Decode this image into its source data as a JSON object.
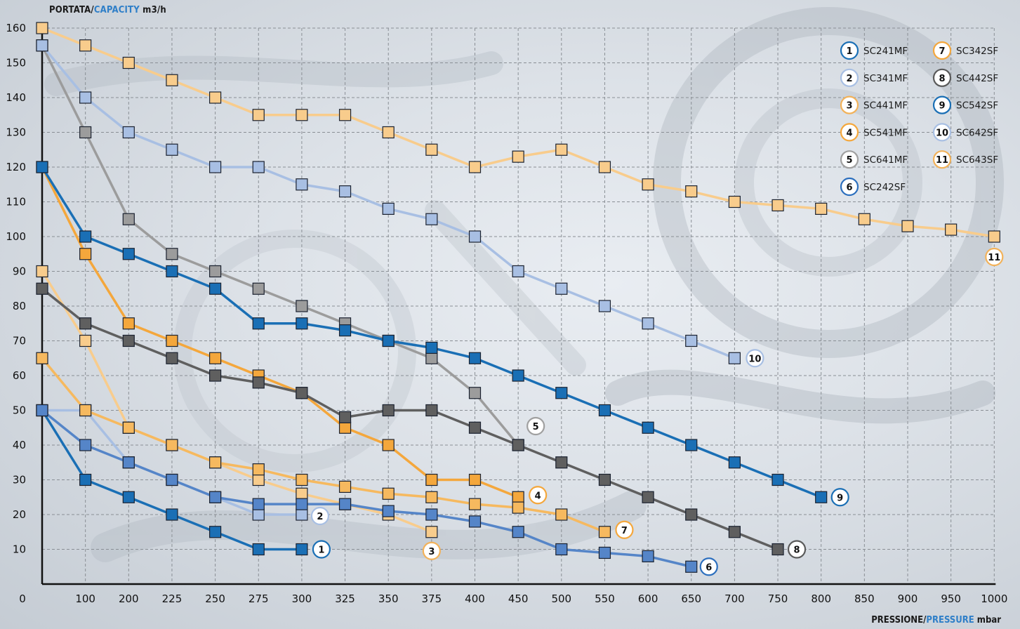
{
  "y_title": {
    "label": "PORTATA",
    "sep": "/",
    "label_en": "CAPACITY",
    "unit": " m3/h"
  },
  "x_title": {
    "label": "PRESSIONE",
    "sep": "/",
    "label_en": "PRESSURE",
    "unit": " mbar"
  },
  "colors": {
    "accent": "#2f7fc8"
  },
  "chart_data": {
    "type": "line",
    "xlabel": "PRESSIONE/PRESSURE mbar",
    "ylabel": "PORTATA/CAPACITY m3/h",
    "x_ticks": [
      "0",
      "100",
      "200",
      "225",
      "250",
      "275",
      "300",
      "325",
      "350",
      "375",
      "400",
      "450",
      "500",
      "550",
      "600",
      "650",
      "700",
      "750",
      "800",
      "850",
      "900",
      "950",
      "1000"
    ],
    "y_ticks": [
      10,
      20,
      30,
      40,
      50,
      60,
      70,
      80,
      90,
      100,
      110,
      120,
      130,
      140,
      150,
      160
    ],
    "ylim": [
      0,
      160
    ],
    "grid": true,
    "legend_position": "top-right",
    "series": [
      {
        "id": 1,
        "name": "SC241MF",
        "color": "#1a6fb5",
        "ring": "#1a6fb5",
        "x": [
          "0",
          "100",
          "200",
          "225",
          "250",
          "275",
          "300"
        ],
        "values": [
          50,
          30,
          25,
          20,
          15,
          10,
          10
        ]
      },
      {
        "id": 2,
        "name": "SC341MF",
        "color": "#a8bfe3",
        "ring": "#a8bfe3",
        "x": [
          "0",
          "100",
          "200",
          "225",
          "250",
          "275",
          "300"
        ],
        "values": [
          50,
          50,
          35,
          30,
          25,
          20,
          20
        ]
      },
      {
        "id": 3,
        "name": "SC441MF",
        "color": "#f8cc8c",
        "ring": "#f2b25a",
        "x": [
          "0",
          "100",
          "200",
          "225",
          "250",
          "275",
          "300",
          "325",
          "350",
          "375"
        ],
        "values": [
          90,
          70,
          45,
          40,
          35,
          30,
          26,
          23,
          20,
          15
        ]
      },
      {
        "id": 4,
        "name": "SC541MF",
        "color": "#f4a73c",
        "ring": "#f4a73c",
        "x": [
          "0",
          "100",
          "200",
          "225",
          "250",
          "275",
          "300",
          "325",
          "350",
          "375",
          "400",
          "450"
        ],
        "values": [
          120,
          95,
          75,
          70,
          65,
          60,
          55,
          45,
          40,
          30,
          30,
          25
        ]
      },
      {
        "id": 5,
        "name": "SC641MF",
        "color": "#9c9c9c",
        "ring": "#a0a0a0",
        "x": [
          "0",
          "100",
          "200",
          "225",
          "250",
          "275",
          "300",
          "325",
          "350",
          "375",
          "400",
          "450"
        ],
        "values": [
          155,
          130,
          105,
          95,
          90,
          85,
          80,
          75,
          70,
          65,
          55,
          40
        ]
      },
      {
        "id": 6,
        "name": "SC242SF",
        "color": "#5585c8",
        "ring": "#2c6fbe",
        "x": [
          "0",
          "100",
          "200",
          "225",
          "250",
          "275",
          "300",
          "325",
          "350",
          "375",
          "400",
          "450",
          "500",
          "550",
          "600",
          "650"
        ],
        "values": [
          50,
          40,
          35,
          30,
          25,
          23,
          23,
          23,
          21,
          20,
          18,
          15,
          10,
          9,
          8,
          5
        ]
      },
      {
        "id": 7,
        "name": "SC342SF",
        "color": "#f6b95f",
        "ring": "#f4a73c",
        "x": [
          "0",
          "100",
          "200",
          "225",
          "250",
          "275",
          "300",
          "325",
          "350",
          "375",
          "400",
          "450",
          "500",
          "550"
        ],
        "values": [
          65,
          50,
          45,
          40,
          35,
          33,
          30,
          28,
          26,
          25,
          23,
          22,
          20,
          15
        ]
      },
      {
        "id": 8,
        "name": "SC442SF",
        "color": "#5f5f5f",
        "ring": "#5a5a5a",
        "x": [
          "0",
          "100",
          "200",
          "225",
          "250",
          "275",
          "300",
          "325",
          "350",
          "375",
          "400",
          "450",
          "500",
          "550",
          "600",
          "650",
          "700",
          "750"
        ],
        "values": [
          85,
          75,
          70,
          65,
          60,
          58,
          55,
          48,
          50,
          50,
          45,
          40,
          35,
          30,
          25,
          20,
          15,
          10
        ]
      },
      {
        "id": 9,
        "name": "SC542SF",
        "color": "#1a6fb5",
        "ring": "#1a6fb5",
        "x": [
          "0",
          "100",
          "200",
          "225",
          "250",
          "275",
          "300",
          "325",
          "350",
          "375",
          "400",
          "450",
          "500",
          "550",
          "600",
          "650",
          "700",
          "750",
          "800"
        ],
        "values": [
          120,
          100,
          95,
          90,
          85,
          75,
          75,
          73,
          70,
          68,
          65,
          60,
          55,
          50,
          45,
          40,
          35,
          30,
          25
        ]
      },
      {
        "id": 10,
        "name": "SC642SF",
        "color": "#a8bfe3",
        "ring": "#a8bfe3",
        "x": [
          "0",
          "100",
          "200",
          "225",
          "250",
          "275",
          "300",
          "325",
          "350",
          "375",
          "400",
          "450",
          "500",
          "550",
          "600",
          "650",
          "700"
        ],
        "values": [
          155,
          140,
          130,
          125,
          120,
          120,
          115,
          113,
          108,
          105,
          100,
          90,
          85,
          80,
          75,
          70,
          65
        ]
      },
      {
        "id": 11,
        "name": "SC643SF",
        "color": "#f8cc8c",
        "ring": "#f2b25a",
        "x": [
          "0",
          "100",
          "200",
          "225",
          "250",
          "275",
          "300",
          "325",
          "350",
          "375",
          "400",
          "450",
          "500",
          "550",
          "600",
          "650",
          "700",
          "750",
          "800",
          "850",
          "900",
          "950",
          "1000"
        ],
        "values": [
          160,
          155,
          150,
          145,
          140,
          135,
          135,
          135,
          130,
          125,
          120,
          123,
          125,
          120,
          115,
          113,
          110,
          109,
          108,
          105,
          103,
          102,
          100
        ]
      }
    ]
  }
}
